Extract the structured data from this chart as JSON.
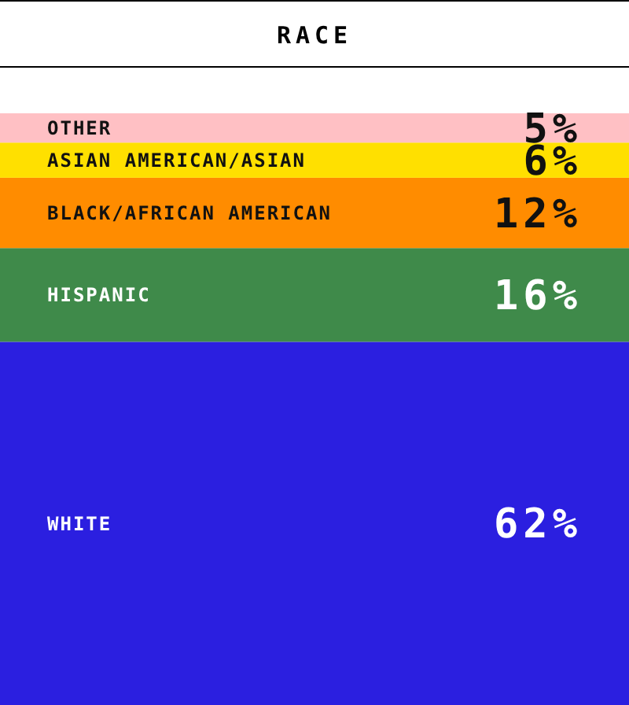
{
  "chart_data": {
    "type": "bar",
    "title": "RACE",
    "stacked": true,
    "categories": [
      null
    ],
    "series": [
      {
        "name": "WHITE",
        "color": "#2b1fe0",
        "values": [
          62
        ],
        "value_labels": [
          "62%"
        ]
      },
      {
        "name": "HISPANIC",
        "color": "#3f8a4a",
        "values": [
          16
        ],
        "value_labels": [
          "16%"
        ]
      },
      {
        "name": "BLACK/AFRICAN AMERICAN",
        "color": "#ff8c00",
        "values": [
          12
        ],
        "value_labels": [
          "12%"
        ]
      },
      {
        "name": "ASIAN AMERICAN/ASIAN",
        "color": "#ffe000",
        "values": [
          6
        ],
        "value_labels": [
          "6%"
        ]
      },
      {
        "name": "OTHER",
        "color": "#ffc0c4",
        "values": [
          5
        ],
        "value_labels": [
          "5%"
        ]
      }
    ]
  }
}
